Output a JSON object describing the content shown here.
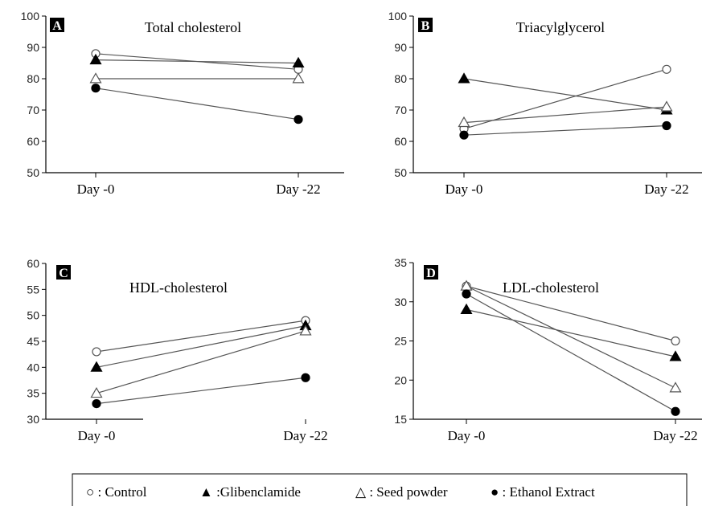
{
  "legend": {
    "items": [
      {
        "marker": "circle-open",
        "label": "○ : Control"
      },
      {
        "marker": "triangle-filled",
        "label": "▲ :Glibenclamide"
      },
      {
        "marker": "triangle-open",
        "label": "△ : Seed powder"
      },
      {
        "marker": "circle-filled",
        "label": "● : Ethanol Extract"
      }
    ]
  },
  "chart_data": [
    {
      "type": "line",
      "panel": "A",
      "title": "Total cholesterol",
      "categories": [
        "Day -0",
        "Day -22"
      ],
      "ylim": [
        50,
        100
      ],
      "yticks": [
        "50",
        "60",
        "70",
        "80",
        "90",
        "100"
      ],
      "series": [
        {
          "name": "Control",
          "marker": "circle-open",
          "values": [
            88,
            83
          ]
        },
        {
          "name": "Glibenclamide",
          "marker": "triangle-filled",
          "values": [
            86,
            85
          ]
        },
        {
          "name": "Seed powder",
          "marker": "triangle-open",
          "values": [
            80,
            80
          ]
        },
        {
          "name": "Ethanol Extract",
          "marker": "circle-filled",
          "values": [
            77,
            67
          ]
        }
      ]
    },
    {
      "type": "line",
      "panel": "B",
      "title": "Triacylglycerol",
      "categories": [
        "Day -0",
        "Day -22"
      ],
      "ylim": [
        50,
        100
      ],
      "yticks": [
        "50",
        "60",
        "70",
        "80",
        "90",
        "100"
      ],
      "series": [
        {
          "name": "Control",
          "marker": "circle-open",
          "values": [
            64,
            83
          ]
        },
        {
          "name": "Glibenclamide",
          "marker": "triangle-filled",
          "values": [
            80,
            70
          ]
        },
        {
          "name": "Seed powder",
          "marker": "triangle-open",
          "values": [
            66,
            71
          ]
        },
        {
          "name": "Ethanol Extract",
          "marker": "circle-filled",
          "values": [
            62,
            65
          ]
        }
      ]
    },
    {
      "type": "line",
      "panel": "C",
      "title": "HDL-cholesterol",
      "categories": [
        "Day -0",
        "Day -22"
      ],
      "ylim": [
        30,
        60
      ],
      "yticks": [
        "30",
        "35",
        "40",
        "45",
        "50",
        "55",
        "60"
      ],
      "series": [
        {
          "name": "Control",
          "marker": "circle-open",
          "values": [
            43,
            49
          ]
        },
        {
          "name": "Glibenclamide",
          "marker": "triangle-filled",
          "values": [
            40,
            48
          ]
        },
        {
          "name": "Seed powder",
          "marker": "triangle-open",
          "values": [
            35,
            47
          ]
        },
        {
          "name": "Ethanol Extract",
          "marker": "circle-filled",
          "values": [
            33,
            38
          ]
        }
      ]
    },
    {
      "type": "line",
      "panel": "D",
      "title": "LDL-cholesterol",
      "categories": [
        "Day -0",
        "Day -22"
      ],
      "ylim": [
        15,
        35
      ],
      "yticks": [
        "15",
        "20",
        "25",
        "30",
        "35"
      ],
      "series": [
        {
          "name": "Control",
          "marker": "circle-open",
          "values": [
            32,
            25
          ]
        },
        {
          "name": "Glibenclamide",
          "marker": "triangle-filled",
          "values": [
            29,
            23
          ]
        },
        {
          "name": "Seed powder",
          "marker": "triangle-open",
          "values": [
            32,
            19
          ]
        },
        {
          "name": "Ethanol Extract",
          "marker": "circle-filled",
          "values": [
            31,
            16
          ]
        }
      ]
    }
  ]
}
